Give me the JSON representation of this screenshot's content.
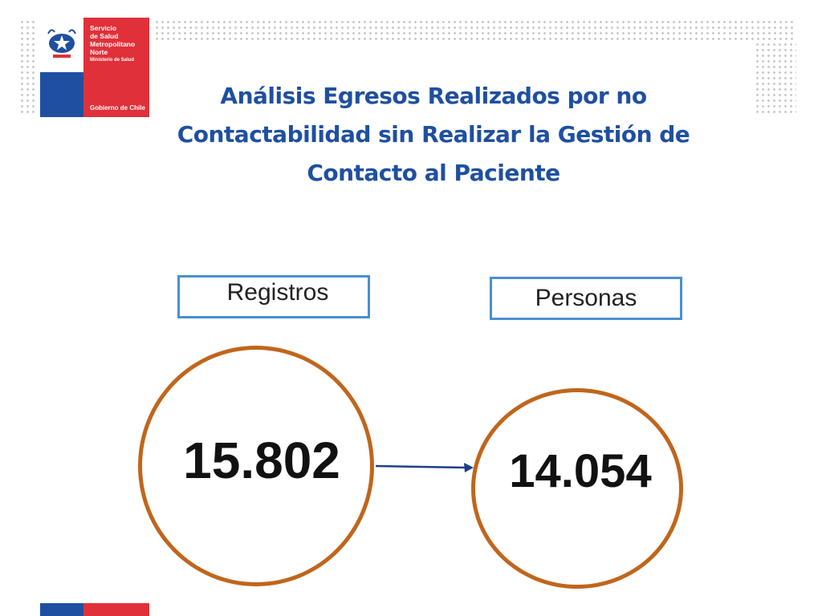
{
  "logo": {
    "org_lines": [
      "Servicio",
      "de Salud",
      "Metropolitano",
      "Norte"
    ],
    "ministry": "Ministerio de Salud",
    "government": "Gobierno de Chile"
  },
  "title": "Análisis Egresos Realizados por no Contactabilidad sin Realizar la Gestión de Contacto al Paciente",
  "registros": {
    "label": "Registros",
    "value": "15.802"
  },
  "personas": {
    "label": "Personas",
    "value": "14.054"
  },
  "colors": {
    "title": "#1f4fa0",
    "box_border": "#4a8fd1",
    "circle_border": "#c0661c",
    "arrow": "#1f3f8a",
    "logo_blue": "#1f4fa0",
    "logo_red": "#e0303a"
  }
}
